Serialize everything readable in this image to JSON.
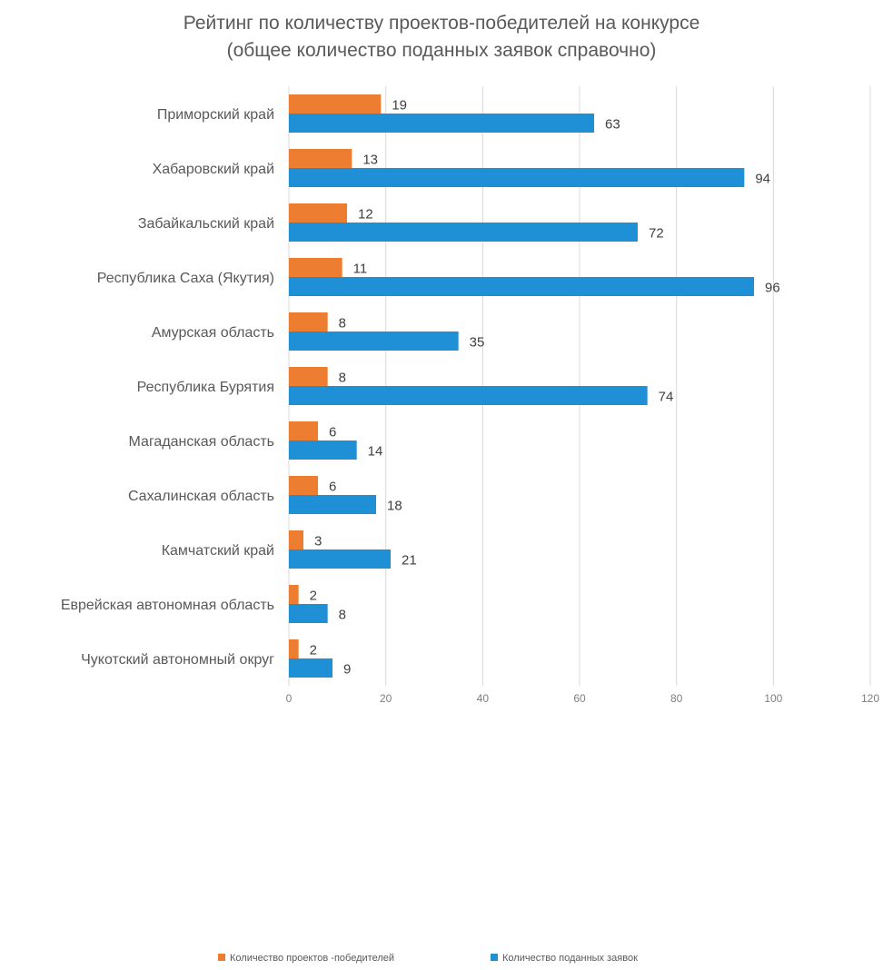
{
  "chart_data": {
    "type": "bar",
    "orientation": "horizontal",
    "title_lines": [
      "Рейтинг по  количеству проектов-победителей на конкурсе",
      "(общее количество поданных заявок справочно)"
    ],
    "categories": [
      "Приморский край",
      "Хабаровский край",
      "Забайкальский край",
      "Республика Саха (Якутия)",
      "Амурская область",
      "Республика Бурятия",
      "Магаданская область",
      "Сахалинская область",
      "Камчатский край",
      "Еврейская автономная область",
      "Чукотский автономный округ"
    ],
    "series": [
      {
        "name": "Количество проектов -победителей",
        "color": "#ED7D31",
        "values": [
          19,
          13,
          12,
          11,
          8,
          8,
          6,
          6,
          3,
          2,
          2
        ]
      },
      {
        "name": "Количество поданных заявок",
        "color": "#1F8FD6",
        "values": [
          63,
          94,
          72,
          96,
          35,
          74,
          14,
          18,
          21,
          8,
          9
        ]
      }
    ],
    "xlim": [
      0,
      120
    ],
    "xticks": [
      0,
      20,
      40,
      60,
      80,
      100,
      120
    ],
    "grid": true,
    "legend_position": "bottom",
    "data_labels": true
  }
}
